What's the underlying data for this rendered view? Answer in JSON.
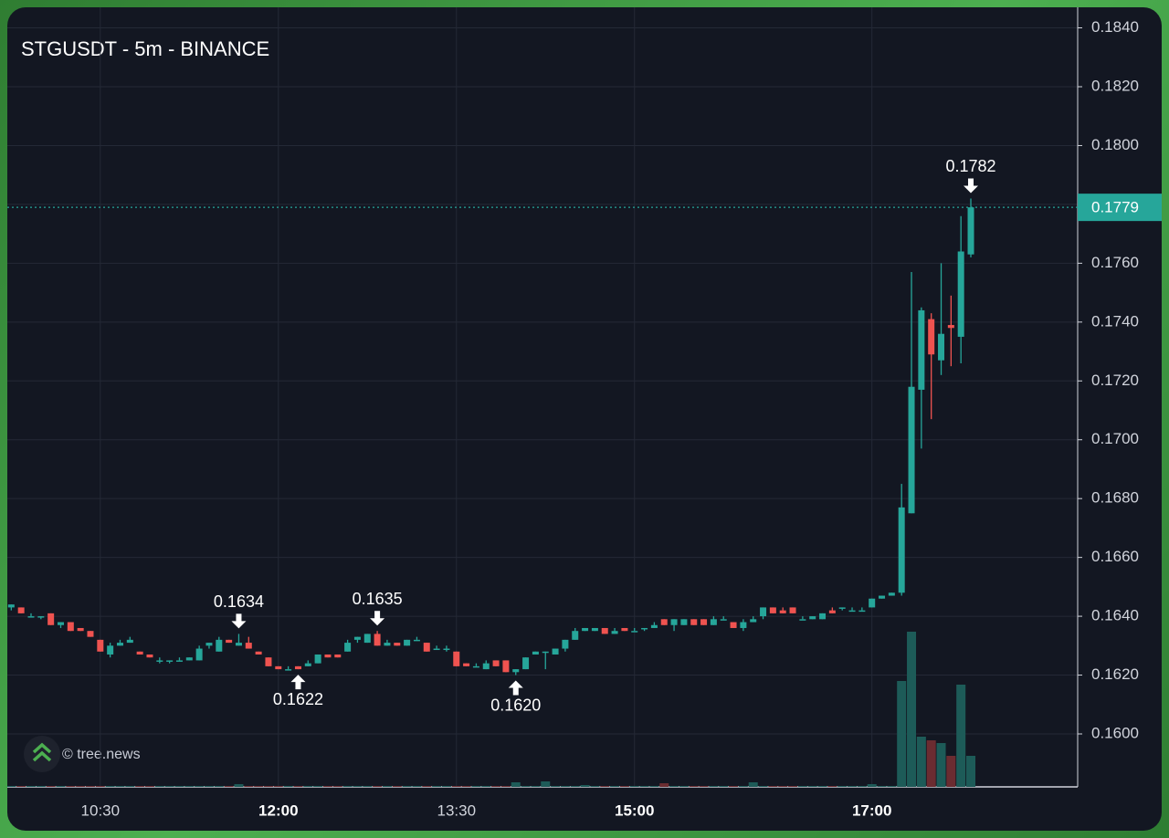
{
  "chart_data": {
    "type": "candlestick",
    "title": "STGUSDT - 5m - BINANCE",
    "watermark": "© tree.news",
    "x": [
      "09:45",
      "09:50",
      "09:55",
      "10:00",
      "10:05",
      "10:10",
      "10:15",
      "10:20",
      "10:25",
      "10:30",
      "10:35",
      "10:40",
      "10:45",
      "10:50",
      "10:55",
      "11:00",
      "11:05",
      "11:10",
      "11:15",
      "11:20",
      "11:25",
      "11:30",
      "11:35",
      "11:40",
      "11:45",
      "11:50",
      "11:55",
      "12:00",
      "12:05",
      "12:10",
      "12:15",
      "12:20",
      "12:25",
      "12:30",
      "12:35",
      "12:40",
      "12:45",
      "12:50",
      "12:55",
      "13:00",
      "13:05",
      "13:10",
      "13:15",
      "13:20",
      "13:25",
      "13:30",
      "13:35",
      "13:40",
      "13:45",
      "13:50",
      "13:55",
      "14:00",
      "14:05",
      "14:10",
      "14:15",
      "14:20",
      "14:25",
      "14:30",
      "14:35",
      "14:40",
      "14:45",
      "14:50",
      "14:55",
      "15:00",
      "15:05",
      "15:10",
      "15:15",
      "15:20",
      "15:25",
      "15:30",
      "15:35",
      "15:40",
      "15:45",
      "15:50",
      "15:55",
      "16:00",
      "16:05",
      "16:10",
      "16:15",
      "16:20",
      "16:25",
      "16:30",
      "16:35",
      "16:40",
      "16:45",
      "16:50",
      "16:55",
      "17:00",
      "17:05",
      "17:10",
      "17:15",
      "17:20",
      "17:25",
      "17:30",
      "17:35",
      "17:40",
      "17:45",
      "17:50"
    ],
    "open": [
      0.1643,
      0.1643,
      0.164,
      0.164,
      0.1641,
      0.1637,
      0.1638,
      0.1636,
      0.1635,
      0.1632,
      0.1627,
      0.163,
      0.1631,
      0.1628,
      0.1627,
      0.1625,
      0.1625,
      0.1625,
      0.1625,
      0.1625,
      0.163,
      0.1628,
      0.1632,
      0.163,
      0.1631,
      0.1628,
      0.1626,
      0.1623,
      0.1622,
      0.1623,
      0.1623,
      0.1624,
      0.1627,
      0.1627,
      0.1628,
      0.1632,
      0.1631,
      0.1634,
      0.163,
      0.1631,
      0.163,
      0.1632,
      0.1631,
      0.1629,
      0.1629,
      0.1628,
      0.1624,
      0.1623,
      0.1622,
      0.1625,
      0.1625,
      0.1621,
      0.1622,
      0.1627,
      0.1628,
      0.1627,
      0.1629,
      0.1632,
      0.1635,
      0.1635,
      0.1636,
      0.1634,
      0.1636,
      0.1635,
      0.1636,
      0.1636,
      0.1639,
      0.1637,
      0.1637,
      0.1639,
      0.1639,
      0.1637,
      0.1639,
      0.1638,
      0.1636,
      0.1638,
      0.164,
      0.1643,
      0.1642,
      0.1643,
      0.1639,
      0.1639,
      0.1639,
      0.1642,
      0.1643,
      0.1642,
      0.1642,
      0.1643,
      0.1646,
      0.1647,
      0.1648,
      0.1675,
      0.1717,
      0.1741,
      0.1727,
      0.1739,
      0.1735,
      0.1763
    ],
    "high": [
      0.1644,
      0.1643,
      0.1641,
      0.164,
      0.1641,
      0.1638,
      0.1638,
      0.1636,
      0.1635,
      0.1632,
      0.1631,
      0.1632,
      0.1633,
      0.1628,
      0.1627,
      0.1626,
      0.1625,
      0.1626,
      0.1626,
      0.163,
      0.1631,
      0.1633,
      0.1632,
      0.1634,
      0.1633,
      0.1628,
      0.1626,
      0.1623,
      0.1623,
      0.1623,
      0.1625,
      0.1627,
      0.1627,
      0.1627,
      0.1632,
      0.1633,
      0.1634,
      0.1635,
      0.1632,
      0.1631,
      0.1632,
      0.1633,
      0.1631,
      0.163,
      0.163,
      0.1628,
      0.1624,
      0.1624,
      0.1625,
      0.1625,
      0.1625,
      0.1622,
      0.1626,
      0.1628,
      0.1628,
      0.1629,
      0.1632,
      0.1636,
      0.1636,
      0.1636,
      0.1636,
      0.1636,
      0.1636,
      0.1636,
      0.1636,
      0.1638,
      0.1639,
      0.1639,
      0.1639,
      0.1639,
      0.1639,
      0.164,
      0.164,
      0.1638,
      0.1639,
      0.164,
      0.1643,
      0.1643,
      0.1643,
      0.1643,
      0.164,
      0.164,
      0.1641,
      0.1643,
      0.1643,
      0.1643,
      0.1643,
      0.1646,
      0.1647,
      0.1648,
      0.1685,
      0.1757,
      0.1745,
      0.1743,
      0.176,
      0.1749,
      0.1776,
      0.1782
    ],
    "low": [
      0.1642,
      0.1641,
      0.164,
      0.1639,
      0.1637,
      0.1636,
      0.1635,
      0.1635,
      0.1633,
      0.1628,
      0.1626,
      0.163,
      0.1631,
      0.1627,
      0.1626,
      0.1624,
      0.1624,
      0.1625,
      0.1625,
      0.1625,
      0.1629,
      0.1628,
      0.1631,
      0.163,
      0.1629,
      0.1627,
      0.1623,
      0.1622,
      0.1622,
      0.1622,
      0.1623,
      0.1624,
      0.1626,
      0.1626,
      0.1628,
      0.1631,
      0.1631,
      0.163,
      0.163,
      0.163,
      0.163,
      0.1632,
      0.1628,
      0.1629,
      0.1628,
      0.1623,
      0.1623,
      0.1623,
      0.1622,
      0.1623,
      0.1621,
      0.162,
      0.1622,
      0.1627,
      0.1622,
      0.1627,
      0.1628,
      0.1632,
      0.1635,
      0.1635,
      0.1634,
      0.1634,
      0.1635,
      0.1635,
      0.1635,
      0.1636,
      0.1637,
      0.1635,
      0.1637,
      0.1637,
      0.1637,
      0.1637,
      0.1639,
      0.1636,
      0.1635,
      0.1638,
      0.1639,
      0.1641,
      0.1641,
      0.1641,
      0.1639,
      0.1639,
      0.1639,
      0.1641,
      0.1642,
      0.1642,
      0.1642,
      0.1643,
      0.1646,
      0.1647,
      0.1647,
      0.1675,
      0.1697,
      0.1707,
      0.1722,
      0.1725,
      0.1726,
      0.1762
    ],
    "close": [
      0.1644,
      0.1641,
      0.164,
      0.164,
      0.1637,
      0.1638,
      0.1635,
      0.1635,
      0.1633,
      0.1628,
      0.163,
      0.1631,
      0.1632,
      0.1627,
      0.1626,
      0.1625,
      0.1625,
      0.1625,
      0.1626,
      0.1629,
      0.1631,
      0.1632,
      0.1631,
      0.1631,
      0.1629,
      0.1627,
      0.1623,
      0.1622,
      0.1622,
      0.1622,
      0.1624,
      0.1627,
      0.1626,
      0.1626,
      0.1631,
      0.1633,
      0.1634,
      0.163,
      0.1631,
      0.163,
      0.1632,
      0.1632,
      0.1628,
      0.1629,
      0.1629,
      0.1623,
      0.1623,
      0.1623,
      0.1624,
      0.1623,
      0.1621,
      0.1622,
      0.1626,
      0.1628,
      0.1628,
      0.1629,
      0.1632,
      0.1635,
      0.1636,
      0.1636,
      0.1634,
      0.1635,
      0.1635,
      0.1635,
      0.1636,
      0.1637,
      0.1637,
      0.1639,
      0.1639,
      0.1637,
      0.1637,
      0.1639,
      0.1639,
      0.1636,
      0.1638,
      0.1639,
      0.1643,
      0.1641,
      0.1641,
      0.1641,
      0.1639,
      0.164,
      0.1641,
      0.1641,
      0.1643,
      0.1642,
      0.1642,
      0.1646,
      0.1647,
      0.1648,
      0.1677,
      0.1718,
      0.1744,
      0.1729,
      0.1736,
      0.1738,
      0.1764,
      0.1779
    ],
    "volume": [
      1,
      1,
      1,
      1,
      1,
      1,
      1,
      1,
      1,
      1,
      1,
      1,
      1,
      1,
      1,
      1,
      1,
      1,
      1,
      1,
      1,
      1,
      1,
      3,
      1,
      1,
      1,
      1,
      1,
      1,
      1,
      1,
      1,
      1,
      1,
      1,
      1,
      1,
      1,
      1,
      1,
      1,
      1,
      1,
      1,
      1,
      1,
      1,
      1,
      1,
      1,
      5,
      1,
      1,
      6,
      1,
      1,
      1,
      2,
      1,
      1,
      1,
      1,
      1,
      1,
      1,
      4,
      1,
      1,
      1,
      1,
      1,
      1,
      1,
      1,
      5,
      1,
      1,
      1,
      1,
      1,
      1,
      1,
      1,
      1,
      1,
      1,
      3,
      1,
      1,
      116,
      170,
      55,
      51,
      48,
      34,
      112,
      34
    ],
    "up_color": "#26a69a",
    "down_color": "#ef5350",
    "xlim": [
      "09:43",
      "18:44"
    ],
    "xticks": [
      "10:30",
      "12:00",
      "13:30",
      "15:00",
      "17:00"
    ],
    "ylim": [
      0.1582,
      0.1847
    ],
    "yticks": [
      {
        "value": 0.16,
        "label": "0.1600"
      },
      {
        "value": 0.162,
        "label": "0.1620"
      },
      {
        "value": 0.164,
        "label": "0.1640"
      },
      {
        "value": 0.166,
        "label": "0.1660"
      },
      {
        "value": 0.168,
        "label": "0.1680"
      },
      {
        "value": 0.17,
        "label": "0.1700"
      },
      {
        "value": 0.172,
        "label": "0.1720"
      },
      {
        "value": 0.174,
        "label": "0.1740"
      },
      {
        "value": 0.176,
        "label": "0.1760"
      },
      {
        "value": 0.178,
        "label": "0.1780"
      },
      {
        "value": 0.18,
        "label": "0.1800"
      },
      {
        "value": 0.182,
        "label": "0.1820"
      },
      {
        "value": 0.184,
        "label": "0.1840"
      }
    ],
    "grid": true,
    "last_price": 0.1779,
    "annotations": [
      {
        "x": "11:40",
        "value": 0.1634,
        "label": "0.1634",
        "position": "above"
      },
      {
        "x": "12:10",
        "value": 0.1622,
        "label": "0.1622",
        "position": "below"
      },
      {
        "x": "12:50",
        "value": 0.1635,
        "label": "0.1635",
        "position": "above"
      },
      {
        "x": "14:00",
        "value": 0.162,
        "label": "0.1620",
        "position": "below"
      },
      {
        "x": "17:50",
        "value": 0.1782,
        "label": "0.1782",
        "position": "above"
      }
    ]
  }
}
